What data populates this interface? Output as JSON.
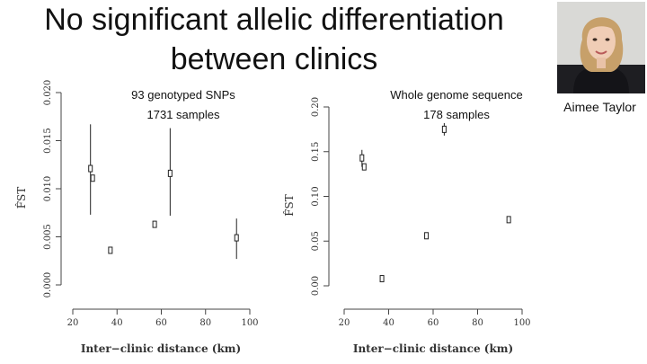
{
  "slide": {
    "title_line1": "No significant allelic differentiation",
    "title_line2": "between clinics",
    "photo_caption": "Aimee Taylor"
  },
  "chart_data": [
    {
      "type": "scatter",
      "subtitle_line1": "93 genotyped SNPs",
      "subtitle_line2": "1731 samples",
      "xlabel": "Inter−clinic distance (km)",
      "ylabel": "F̂ST",
      "xlim": [
        20,
        100
      ],
      "ylim": [
        0,
        0.02
      ],
      "xticks": [
        20,
        40,
        60,
        80,
        100
      ],
      "yticks": [
        0.0,
        0.005,
        0.01,
        0.015,
        0.02
      ],
      "ytick_labels": [
        "0.000",
        "0.005",
        "0.010",
        "0.015",
        "0.020"
      ],
      "points": [
        {
          "x": 28,
          "y": 0.0121,
          "lo": 0.0073,
          "hi": 0.0167
        },
        {
          "x": 29,
          "y": 0.0111,
          "lo": null,
          "hi": null
        },
        {
          "x": 37,
          "y": 0.0036,
          "lo": null,
          "hi": null
        },
        {
          "x": 57,
          "y": 0.0063,
          "lo": null,
          "hi": null
        },
        {
          "x": 64,
          "y": 0.0116,
          "lo": 0.0072,
          "hi": 0.0163
        },
        {
          "x": 94,
          "y": 0.0049,
          "lo": 0.0027,
          "hi": 0.0069
        }
      ]
    },
    {
      "type": "scatter",
      "subtitle_line1": "Whole genome sequence",
      "subtitle_line2": "178 samples",
      "xlabel": "Inter−clinic distance (km)",
      "ylabel": "F̂ST",
      "xlim": [
        20,
        100
      ],
      "ylim": [
        0,
        0.2
      ],
      "xticks": [
        20,
        40,
        60,
        80,
        100
      ],
      "yticks": [
        0.0,
        0.05,
        0.1,
        0.15,
        0.2
      ],
      "ytick_labels": [
        "0.00",
        "0.05",
        "0.10",
        "0.15",
        "0.20"
      ],
      "points": [
        {
          "x": 28,
          "y": 0.143,
          "lo": 0.133,
          "hi": 0.152
        },
        {
          "x": 29,
          "y": 0.133,
          "lo": null,
          "hi": null
        },
        {
          "x": 37,
          "y": 0.008,
          "lo": null,
          "hi": null
        },
        {
          "x": 57,
          "y": 0.056,
          "lo": null,
          "hi": null
        },
        {
          "x": 65,
          "y": 0.175,
          "lo": 0.168,
          "hi": 0.182
        },
        {
          "x": 94,
          "y": 0.074,
          "lo": null,
          "hi": null
        }
      ]
    }
  ]
}
